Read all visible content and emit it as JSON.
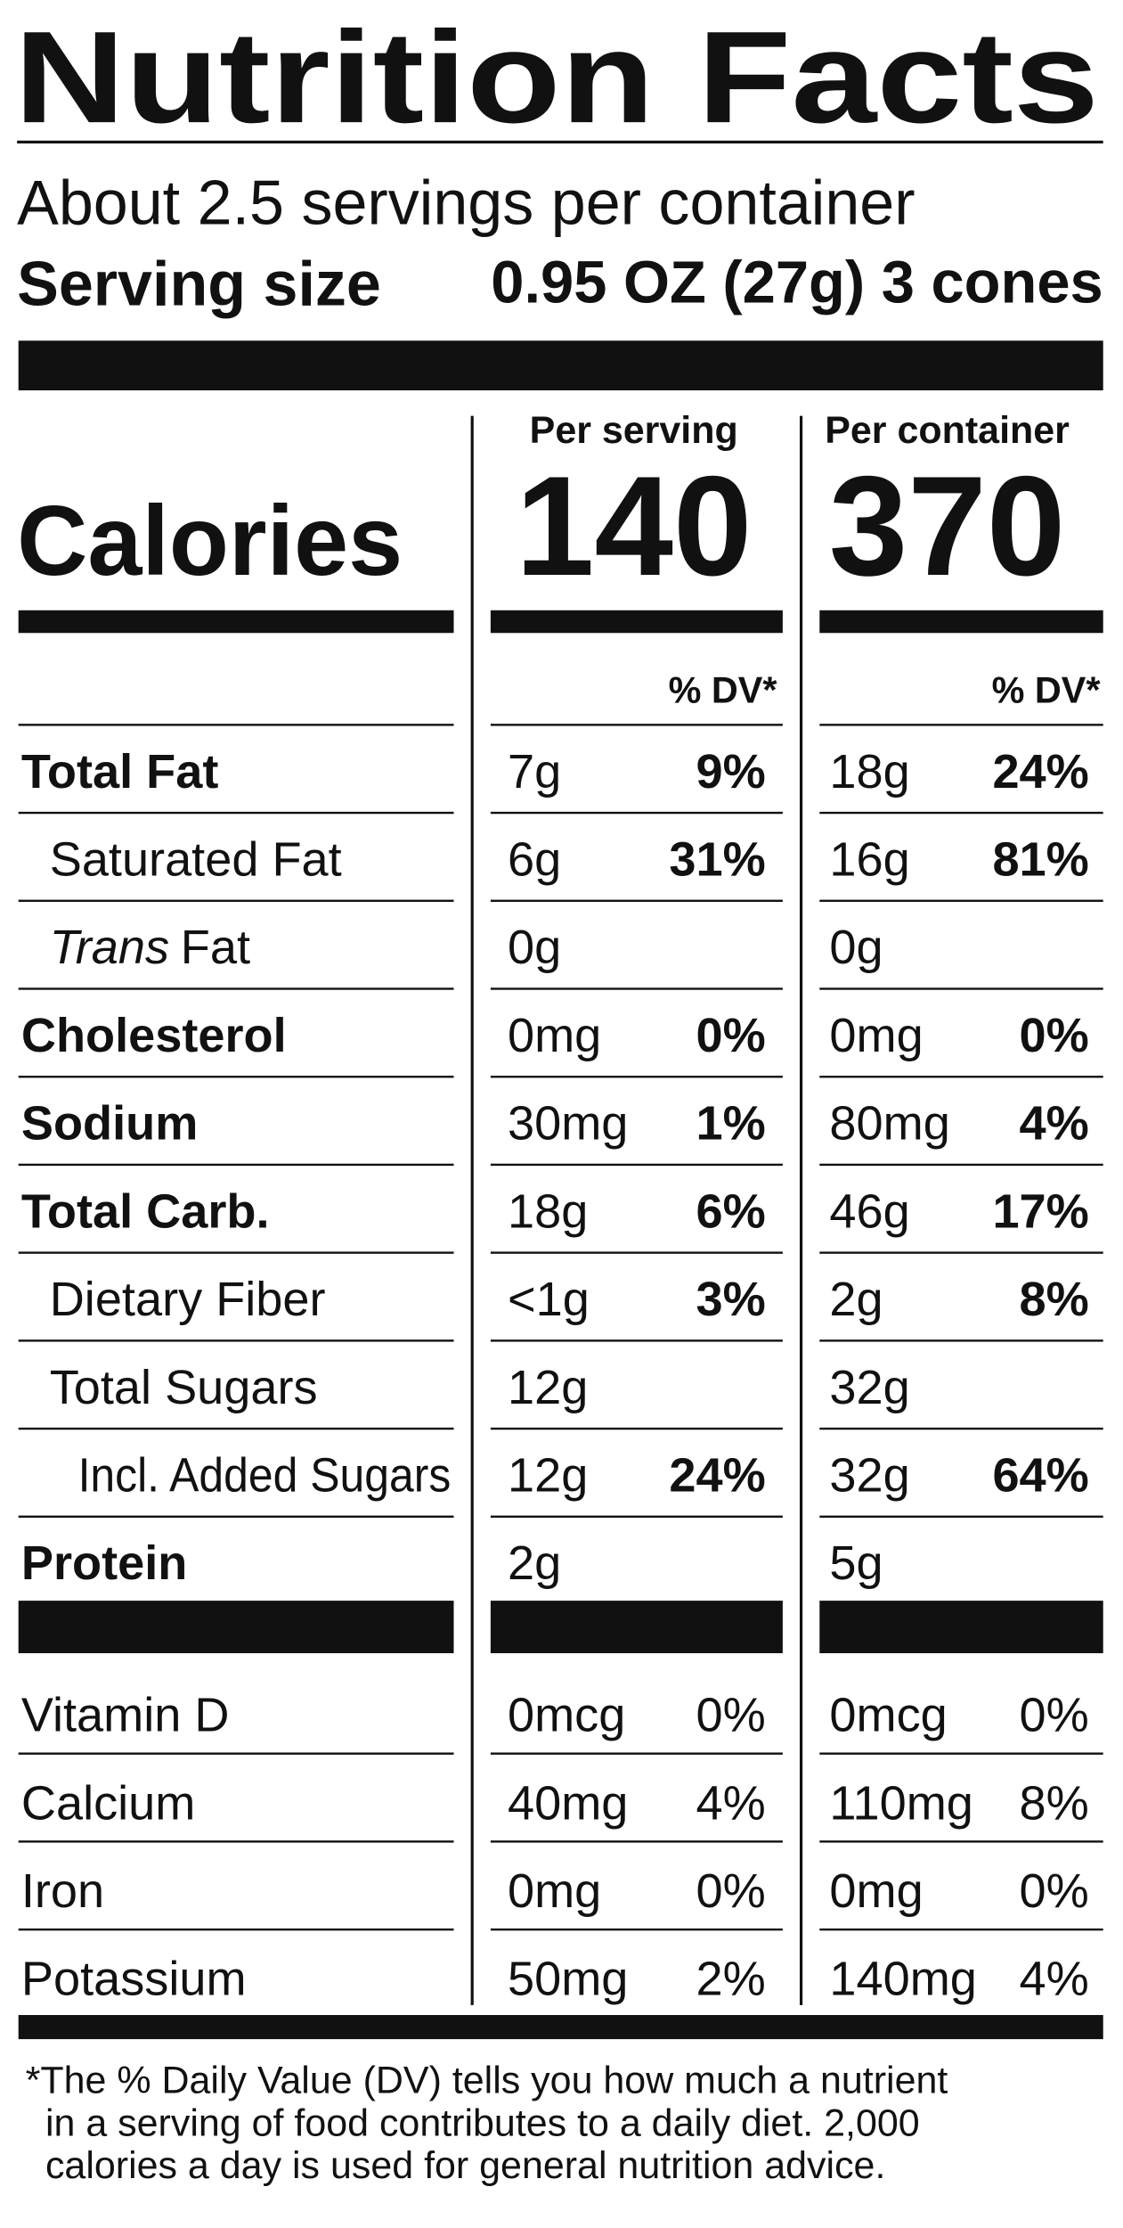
{
  "header": {
    "title": "Nutrition Facts",
    "servings": "About 2.5 servings per container",
    "serving_size_label": "Serving size",
    "serving_size_value": "0.95 OZ (27g) 3 cones"
  },
  "calories": {
    "label": "Calories",
    "columns": [
      {
        "heading": "Per serving",
        "value": "140"
      },
      {
        "heading": "Per container",
        "value": "370"
      }
    ]
  },
  "dv_headings": [
    "% DV*",
    "% DV*"
  ],
  "nutrients": [
    {
      "name": "Total Fat",
      "bold": true,
      "level": 0,
      "serving": [
        "7g",
        "9%"
      ],
      "container": [
        "18g",
        "24%"
      ]
    },
    {
      "name": "Saturated Fat",
      "bold": false,
      "level": 1,
      "serving": [
        "6g",
        "31%"
      ],
      "container": [
        "16g",
        "81%"
      ]
    },
    {
      "name_italic": "Trans",
      "name": "Fat",
      "bold": false,
      "level": 1,
      "serving": [
        "0g"
      ],
      "container": [
        "0g"
      ]
    },
    {
      "name": "Cholesterol",
      "bold": true,
      "level": 0,
      "serving": [
        "0mg",
        "0%"
      ],
      "container": [
        "0mg",
        "0%"
      ]
    },
    {
      "name": "Sodium",
      "bold": true,
      "level": 0,
      "serving": [
        "30mg",
        "1%"
      ],
      "container": [
        "80mg",
        "4%"
      ]
    },
    {
      "name": "Total Carb.",
      "bold": true,
      "level": 0,
      "serving": [
        "18g",
        "6%"
      ],
      "container": [
        "46g",
        "17%"
      ]
    },
    {
      "name": "Dietary Fiber",
      "bold": false,
      "level": 1,
      "serving": [
        "<1g",
        "3%"
      ],
      "container": [
        "2g",
        "8%"
      ]
    },
    {
      "name": "Total Sugars",
      "bold": false,
      "level": 1,
      "serving": [
        "12g"
      ],
      "container": [
        "32g"
      ]
    },
    {
      "name": "Incl. Added Sugars",
      "bold": false,
      "level": 2,
      "serving": [
        "12g",
        "24%"
      ],
      "container": [
        "32g",
        "64%"
      ]
    },
    {
      "name": "Protein",
      "bold": true,
      "level": 0,
      "serving": [
        "2g"
      ],
      "container": [
        "5g"
      ]
    }
  ],
  "vitamins": [
    {
      "name": "Vitamin D",
      "serving": [
        "0mcg",
        "0%"
      ],
      "container": [
        "0mcg",
        "0%"
      ]
    },
    {
      "name": "Calcium",
      "serving": [
        "40mg",
        "4%"
      ],
      "container": [
        "110mg",
        "8%"
      ]
    },
    {
      "name": "Iron",
      "serving": [
        "0mg",
        "0%"
      ],
      "container": [
        "0mg",
        "0%"
      ]
    },
    {
      "name": "Potassium",
      "serving": [
        "50mg",
        "2%"
      ],
      "container": [
        "140mg",
        "4%"
      ]
    }
  ],
  "footnote": [
    "*The % Daily Value (DV) tells you how much a nutrient",
    "in a serving of food contributes to a daily diet. 2,000",
    "calories a day is used for general nutrition advice."
  ]
}
